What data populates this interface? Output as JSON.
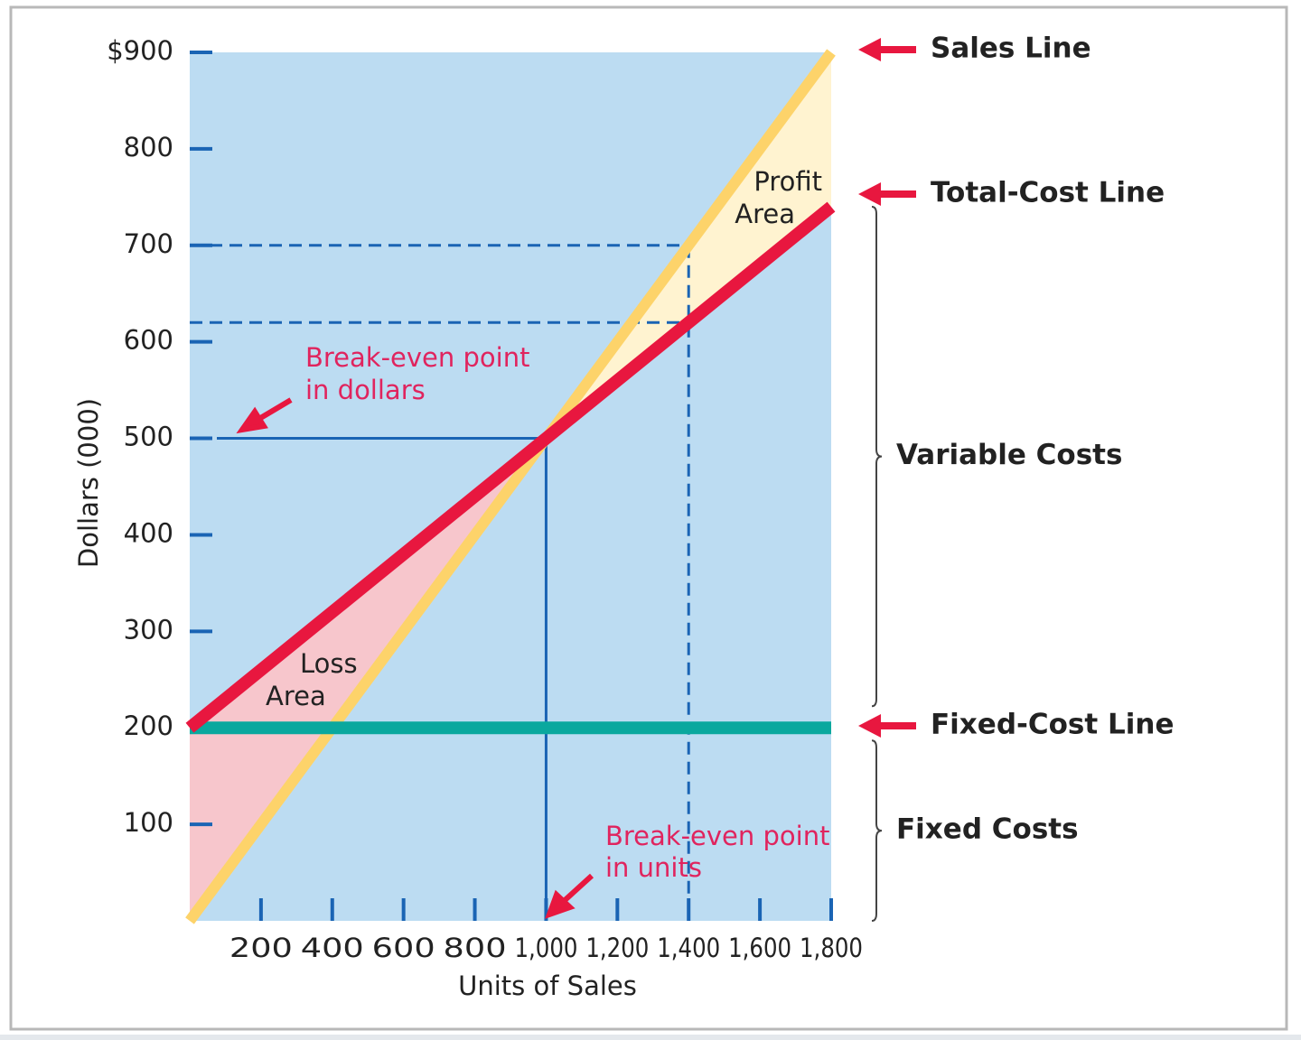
{
  "chart_data": {
    "type": "line",
    "x_label": "Units of Sales",
    "y_label": "Dollars (000)",
    "x": [
      0,
      1800
    ],
    "series": [
      {
        "name": "Sales Line",
        "color": "#fdd36a",
        "values": [
          0,
          900
        ]
      },
      {
        "name": "Total-Cost Line",
        "color": "#e8173f",
        "values": [
          200,
          740
        ]
      },
      {
        "name": "Fixed-Cost Line",
        "color": "#0aa89e",
        "values": [
          200,
          200
        ]
      }
    ],
    "xlim": [
      0,
      1800
    ],
    "ylim": [
      0,
      900
    ],
    "xticks": [
      200,
      400,
      600,
      800,
      {
        "value": 1000,
        "label": "1,000"
      },
      {
        "value": 1200,
        "label": "1,200"
      },
      {
        "value": 1400,
        "label": "1,400"
      },
      {
        "value": 1600,
        "label": "1,600"
      },
      {
        "value": 1800,
        "label": "1,800"
      }
    ],
    "yticks": [
      100,
      200,
      300,
      400,
      500,
      600,
      700,
      800,
      {
        "value": 900,
        "label": "$900"
      }
    ],
    "break_even": {
      "x": 1000,
      "y": 500
    },
    "reference": {
      "dollars": [
        700,
        620
      ],
      "units": 1400
    },
    "brackets": [
      "Variable Costs",
      "Fixed Costs"
    ],
    "annotations": {
      "profit_area": [
        "Profit",
        "Area"
      ],
      "loss_area": [
        "Loss",
        "Area"
      ],
      "break_even_dollars": [
        "Break-even point",
        "in dollars"
      ],
      "break_even_units": [
        "Break-even point",
        "in units"
      ]
    }
  }
}
